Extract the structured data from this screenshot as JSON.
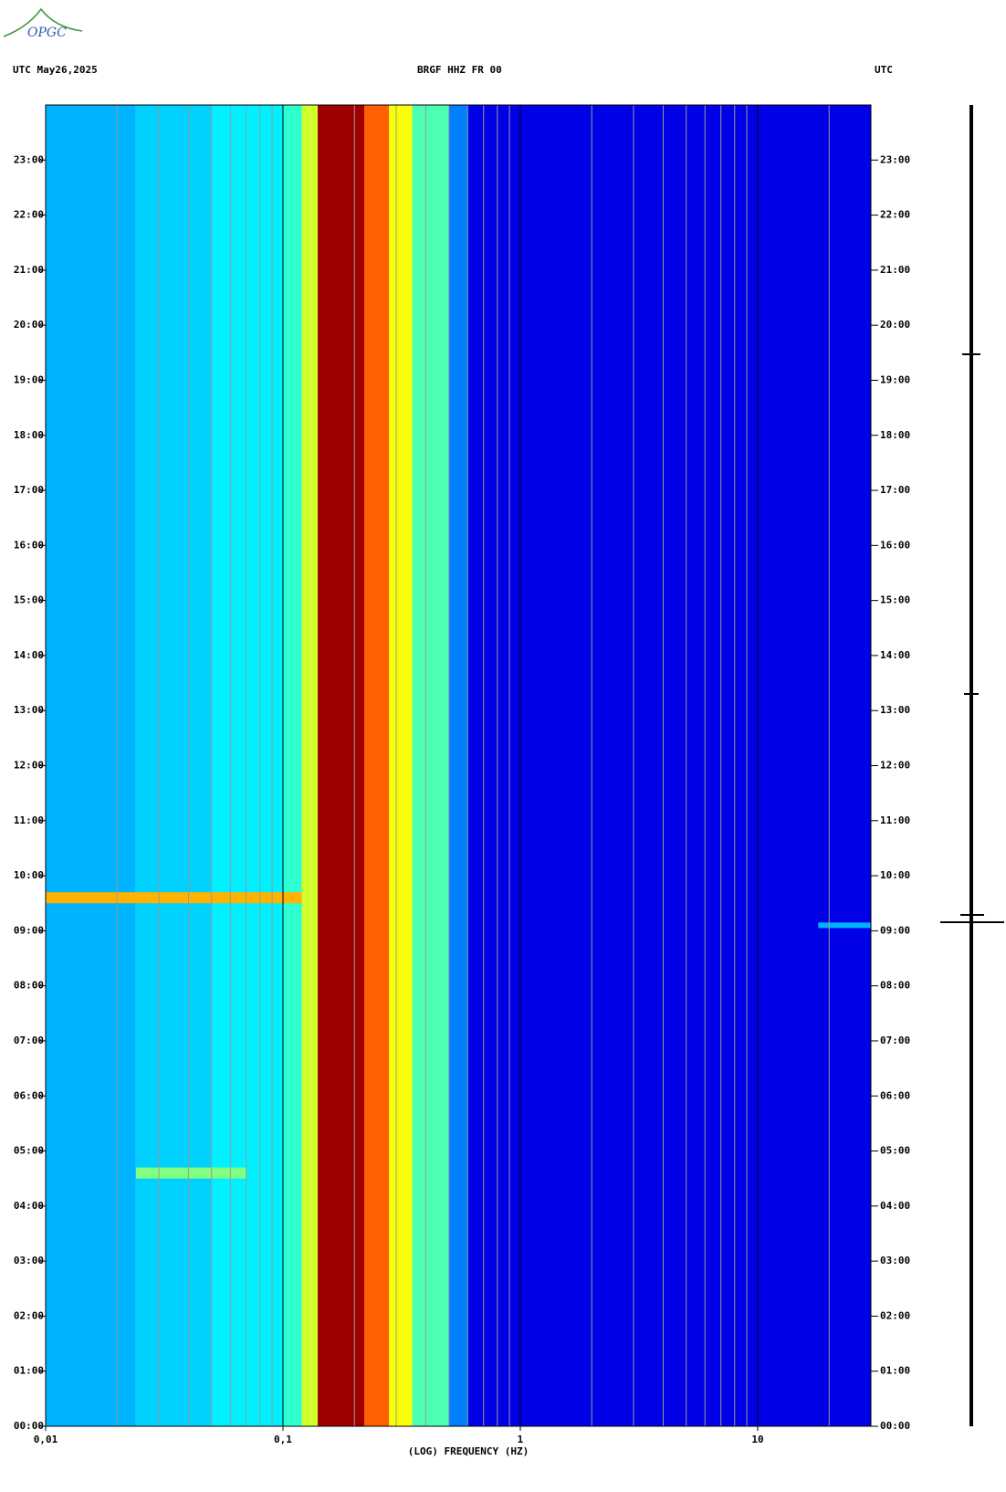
{
  "chart_data": {
    "type": "spectrogram",
    "logo": "OPGC",
    "title_left": "UTC  May26,2025",
    "title": "BRGF HHZ FR 00",
    "title_right": "UTC",
    "xlabel": "(LOG) FREQUENCY (HZ)",
    "xscale": "log",
    "colormap": "jet",
    "xlim": [
      0.01,
      30
    ],
    "xticks": [
      {
        "value": 0.01,
        "label": "0,01"
      },
      {
        "value": 0.1,
        "label": "0,1"
      },
      1,
      10
    ],
    "xgrid": [
      0.02,
      0.03,
      0.04,
      0.05,
      0.06,
      0.07,
      0.08,
      0.09,
      0.2,
      0.3,
      0.4,
      0.5,
      0.6,
      0.7,
      0.8,
      0.9,
      2,
      3,
      4,
      5,
      6,
      7,
      8,
      9,
      20
    ],
    "ylim": [
      0,
      24
    ],
    "yticks": [
      {
        "value": 0,
        "label": "00:00"
      },
      {
        "value": 1,
        "label": "01:00"
      },
      {
        "value": 2,
        "label": "02:00"
      },
      {
        "value": 3,
        "label": "03:00"
      },
      {
        "value": 4,
        "label": "04:00"
      },
      {
        "value": 5,
        "label": "05:00"
      },
      {
        "value": 6,
        "label": "06:00"
      },
      {
        "value": 7,
        "label": "07:00"
      },
      {
        "value": 8,
        "label": "08:00"
      },
      {
        "value": 9,
        "label": "09:00"
      },
      {
        "value": 10,
        "label": "10:00"
      },
      {
        "value": 11,
        "label": "11:00"
      },
      {
        "value": 12,
        "label": "12:00"
      },
      {
        "value": 13,
        "label": "13:00"
      },
      {
        "value": 14,
        "label": "14:00"
      },
      {
        "value": 15,
        "label": "15:00"
      },
      {
        "value": 16,
        "label": "16:00"
      },
      {
        "value": 17,
        "label": "17:00"
      },
      {
        "value": 18,
        "label": "18:00"
      },
      {
        "value": 19,
        "label": "19:00"
      },
      {
        "value": 20,
        "label": "20:00"
      },
      {
        "value": 21,
        "label": "21:00"
      },
      {
        "value": 22,
        "label": "22:00"
      },
      {
        "value": 23,
        "label": "23:00"
      }
    ],
    "bands": [
      {
        "f0": 0.01,
        "f1": 0.024,
        "level": 0.3
      },
      {
        "f0": 0.024,
        "f1": 0.05,
        "level": 0.33
      },
      {
        "f0": 0.05,
        "f1": 0.1,
        "level": 0.36
      },
      {
        "f0": 0.1,
        "f1": 0.12,
        "level": 0.42
      },
      {
        "f0": 0.12,
        "f1": 0.14,
        "level": 0.58
      },
      {
        "f0": 0.14,
        "f1": 0.22,
        "level": 0.97
      },
      {
        "f0": 0.22,
        "f1": 0.28,
        "level": 0.78
      },
      {
        "f0": 0.28,
        "f1": 0.35,
        "level": 0.62
      },
      {
        "f0": 0.35,
        "f1": 0.5,
        "level": 0.45
      },
      {
        "f0": 0.5,
        "f1": 0.6,
        "level": 0.25
      },
      {
        "f0": 0.6,
        "f1": 30,
        "level": 0.1
      }
    ],
    "events": [
      {
        "t0": 9.5,
        "t1": 9.7,
        "f0": 0.01,
        "f1": 0.12,
        "level": 0.7
      },
      {
        "t0": 4.5,
        "t1": 4.7,
        "f0": 0.024,
        "f1": 0.07,
        "level": 0.5
      },
      {
        "t0": 9.05,
        "t1": 9.15,
        "f0": 18,
        "f1": 30,
        "level": 0.3
      }
    ]
  }
}
